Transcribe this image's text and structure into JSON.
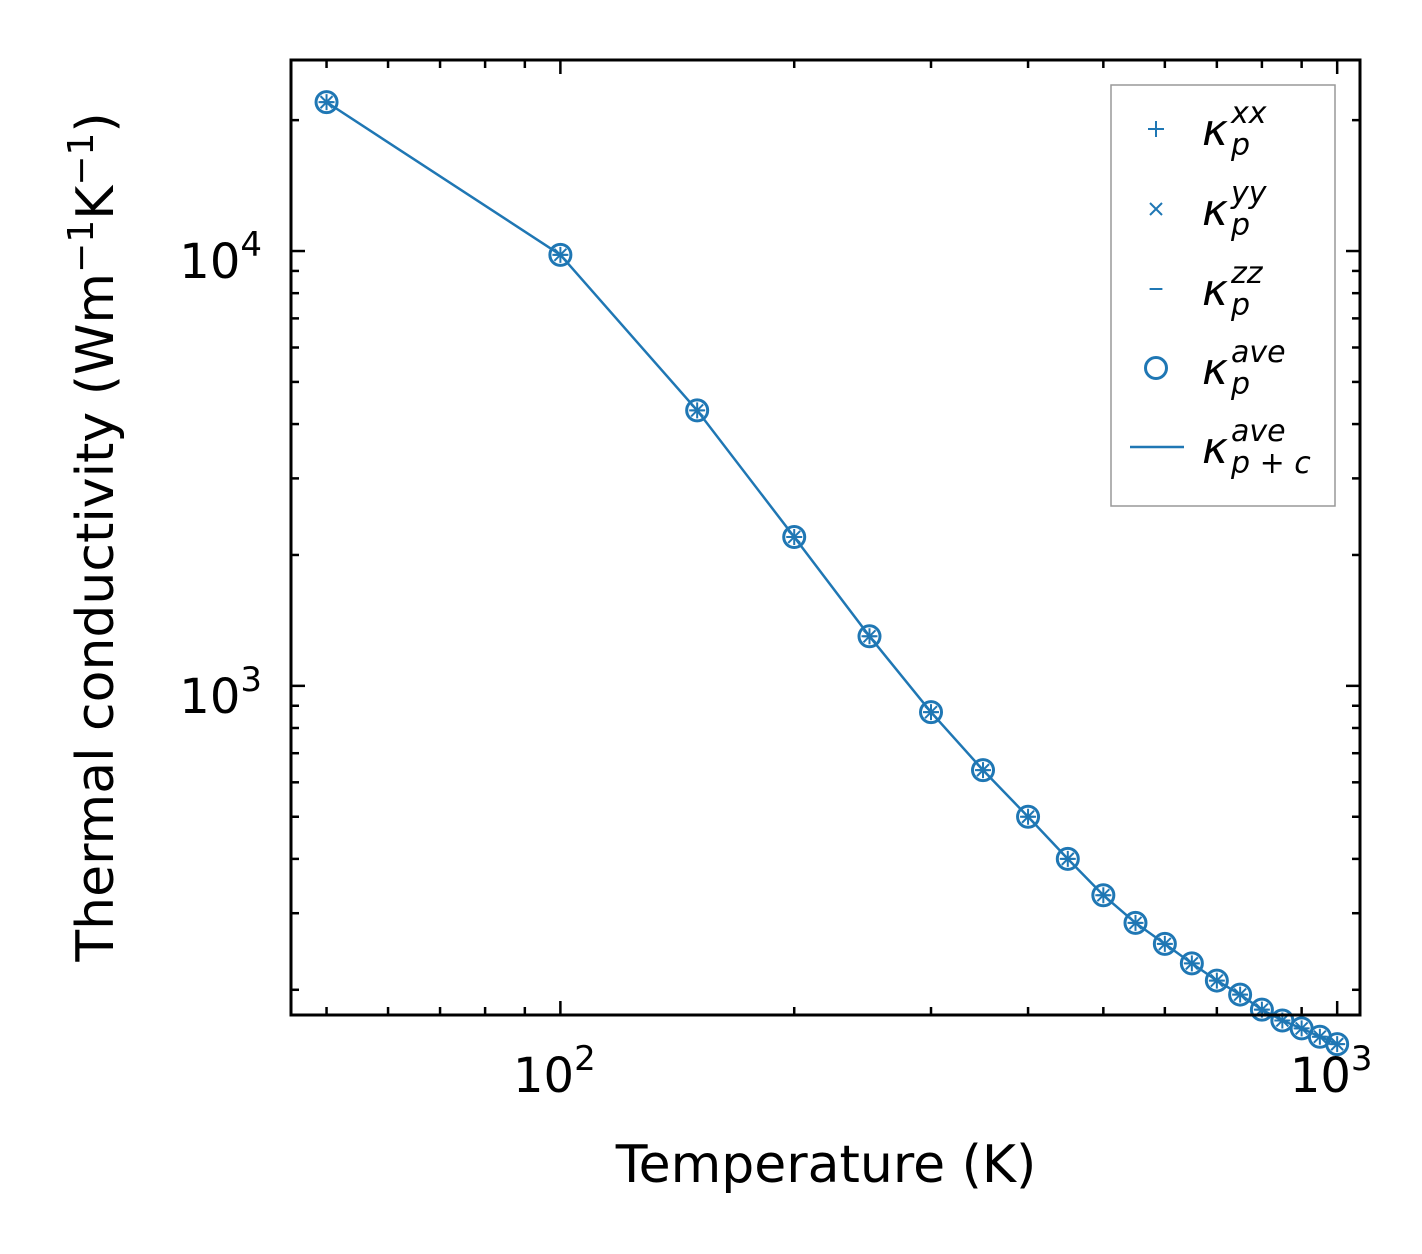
{
  "chart_data": {
    "type": "line",
    "xscale": "log",
    "yscale": "log",
    "xlabel": "Temperature (K)",
    "ylabel_main": "Thermal conductivity (Wm",
    "ylabel_sup1": "−1",
    "ylabel_mid": "K",
    "ylabel_sup2": "−1",
    "ylabel_end": ")",
    "xlim": [
      45,
      1070
    ],
    "ylim": [
      175,
      27500
    ],
    "x_ticks": [
      {
        "base": "10",
        "exp": "2",
        "value": 100
      },
      {
        "base": "10",
        "exp": "3",
        "value": 1000
      }
    ],
    "y_ticks": [
      {
        "base": "10",
        "exp": "3",
        "value": 1000
      },
      {
        "base": "10",
        "exp": "4",
        "value": 10000
      }
    ],
    "color": "#1f77b4",
    "x": [
      50,
      100,
      150,
      200,
      250,
      300,
      350,
      400,
      450,
      500,
      550,
      600,
      650,
      700,
      750,
      800,
      850,
      900,
      950,
      1000
    ],
    "series": [
      {
        "name": "kappa_p_xx",
        "marker": "plus",
        "values": [
          22000,
          9800,
          4300,
          2200,
          1300,
          870,
          640,
          500,
          400,
          330,
          285,
          255,
          230,
          210,
          195,
          180,
          170,
          163,
          156,
          150
        ]
      },
      {
        "name": "kappa_p_yy",
        "marker": "x",
        "values": [
          22000,
          9800,
          4300,
          2200,
          1300,
          870,
          640,
          500,
          400,
          330,
          285,
          255,
          230,
          210,
          195,
          180,
          170,
          163,
          156,
          150
        ]
      },
      {
        "name": "kappa_p_zz",
        "marker": "hline",
        "values": [
          22000,
          9800,
          4300,
          2200,
          1300,
          870,
          640,
          500,
          400,
          330,
          285,
          255,
          230,
          210,
          195,
          180,
          170,
          163,
          156,
          150
        ]
      },
      {
        "name": "kappa_p_ave",
        "marker": "circle",
        "values": [
          22000,
          9800,
          4300,
          2200,
          1300,
          870,
          640,
          500,
          400,
          330,
          285,
          255,
          230,
          210,
          195,
          180,
          170,
          163,
          156,
          150
        ]
      },
      {
        "name": "kappa_p+c_ave",
        "marker": "line",
        "values": [
          22000,
          9800,
          4300,
          2200,
          1300,
          870,
          640,
          500,
          400,
          330,
          285,
          255,
          230,
          210,
          195,
          180,
          170,
          163,
          156,
          150
        ]
      }
    ],
    "legend": {
      "placement": "top-right",
      "entries": [
        {
          "symbol": "κ",
          "sub": "p",
          "sup": "xx",
          "marker": "plus"
        },
        {
          "symbol": "κ",
          "sub": "p",
          "sup": "yy",
          "marker": "x"
        },
        {
          "symbol": "κ",
          "sub": "p",
          "sup": "zz",
          "marker": "hline"
        },
        {
          "symbol": "κ",
          "sub": "p",
          "sup": "ave",
          "marker": "circle"
        },
        {
          "symbol": "κ",
          "sub": "p + c",
          "sup": "ave",
          "marker": "line"
        }
      ]
    }
  }
}
